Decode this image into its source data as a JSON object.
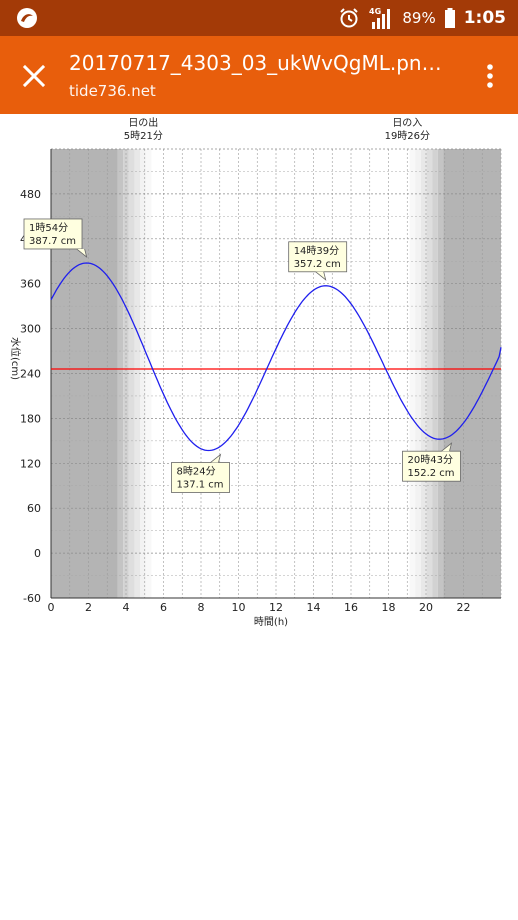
{
  "status_bar": {
    "network": "4G",
    "battery": "89%",
    "time": "1:05",
    "icons": [
      "app-logo-icon",
      "alarm-icon",
      "signal-icon",
      "battery-icon"
    ]
  },
  "app_bar": {
    "title": "20170717_4303_03_ukWvQgML.pn…",
    "subtitle": "tide736.net",
    "close_icon": "close-icon",
    "menu_icon": "more-vert-icon",
    "colors": {
      "status": "#a33a07",
      "bar": "#e85e0c"
    }
  },
  "chart_data": {
    "type": "line",
    "xlabel": "時間(h)",
    "ylabel": "水位(cm)",
    "xlim": [
      0,
      24
    ],
    "ylim": [
      -60,
      540
    ],
    "xticks": [
      0,
      2,
      4,
      6,
      8,
      10,
      12,
      14,
      16,
      18,
      20,
      22
    ],
    "yticks": [
      -60,
      0,
      60,
      120,
      180,
      240,
      300,
      360,
      420,
      480
    ],
    "grid": true,
    "sunrise": {
      "label": "日の出",
      "time_label": "5時21分",
      "hour": 5.35
    },
    "sunset": {
      "label": "日の入",
      "time_label": "19時26分",
      "hour": 19.43
    },
    "reference_line": {
      "value": 246,
      "color": "#ff0000"
    },
    "series": [
      {
        "color": "#2020ee",
        "extrema": [
          {
            "hour": 1.9,
            "value": 387.7,
            "label_time": "1時54分",
            "label_value": "387.7 cm",
            "kind": "high"
          },
          {
            "hour": 8.4,
            "value": 137.1,
            "label_time": "8時24分",
            "label_value": "137.1 cm",
            "kind": "low"
          },
          {
            "hour": 14.65,
            "value": 357.2,
            "label_time": "14時39分",
            "label_value": "357.2 cm",
            "kind": "high"
          },
          {
            "hour": 20.72,
            "value": 152.2,
            "label_time": "20時43分",
            "label_value": "152.2 cm",
            "kind": "low"
          }
        ],
        "start": {
          "hour": 0,
          "value": 335
        },
        "end": {
          "hour": 24,
          "value": 275
        }
      }
    ]
  }
}
